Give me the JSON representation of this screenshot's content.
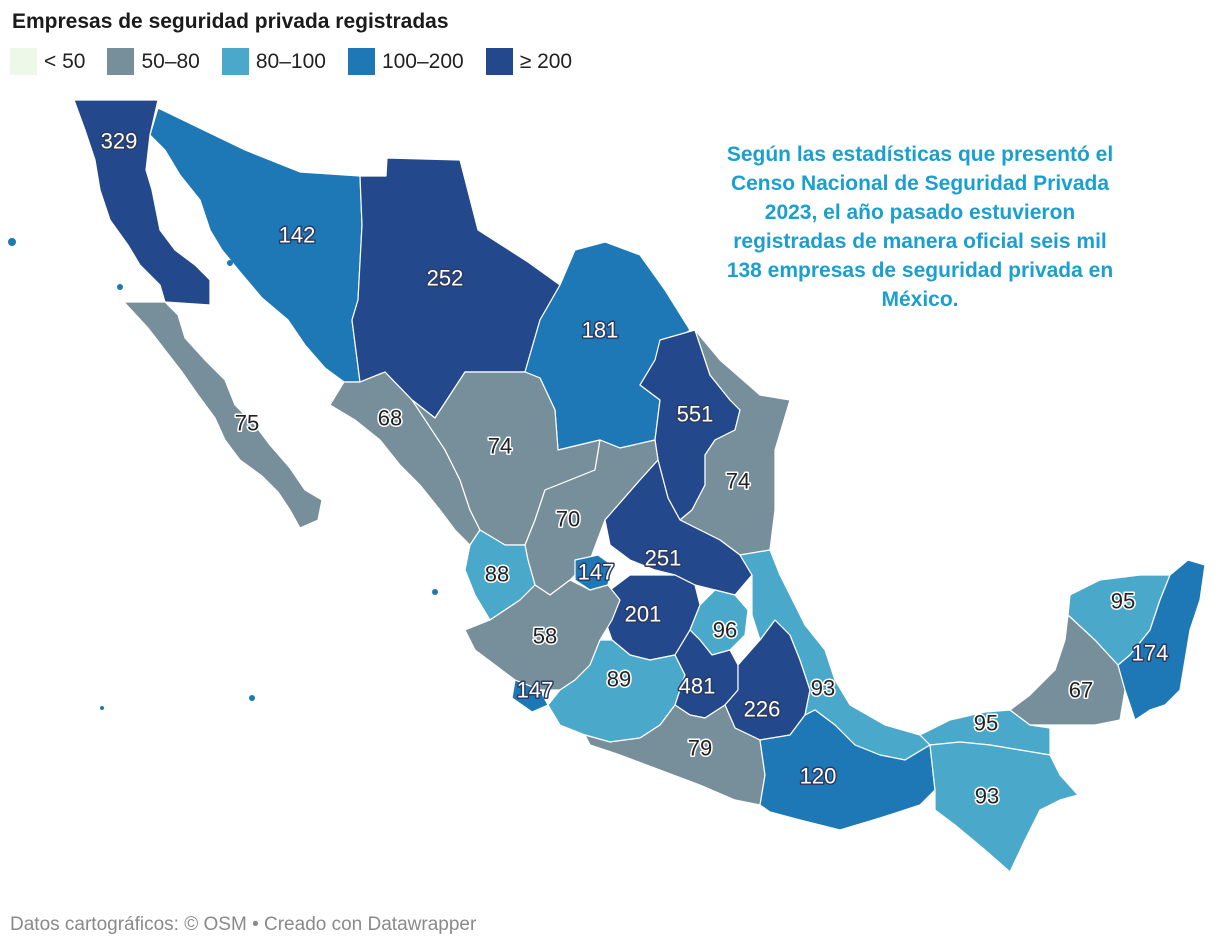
{
  "title": "Empresas de seguridad privada registradas",
  "legend": [
    {
      "label": "< 50",
      "color": "#eef8e8"
    },
    {
      "label": "50–80",
      "color": "#778f9b"
    },
    {
      "label": "80–100",
      "color": "#4aa8cb"
    },
    {
      "label": "100–200",
      "color": "#1e78b6"
    },
    {
      "label": "≥ 200",
      "color": "#23488b"
    }
  ],
  "annotation": "Según las estadísticas que presentó el Censo Nacional de Seguridad Privada 2023, el año pasado estuvieron registradas de manera oficial seis mil 138 empresas de seguridad privada en México.",
  "footer": {
    "source": "Datos cartográficos: © OSM",
    "credit": "• Creado con Datawrapper"
  },
  "states": [
    {
      "key": "baja-california",
      "value": "329"
    },
    {
      "key": "sonora",
      "value": "142"
    },
    {
      "key": "chihuahua",
      "value": "252"
    },
    {
      "key": "coahuila",
      "value": "181"
    },
    {
      "key": "nuevo-leon",
      "value": "551"
    },
    {
      "key": "baja-california-sur",
      "value": "75"
    },
    {
      "key": "sinaloa",
      "value": "68"
    },
    {
      "key": "durango",
      "value": "74"
    },
    {
      "key": "tamaulipas",
      "value": "74"
    },
    {
      "key": "zacatecas",
      "value": "70"
    },
    {
      "key": "san-luis-potosi",
      "value": "251"
    },
    {
      "key": "nayarit",
      "value": "88"
    },
    {
      "key": "aguascalientes",
      "value": "147"
    },
    {
      "key": "guanajuato",
      "value": "201"
    },
    {
      "key": "queretaro",
      "value": "96"
    },
    {
      "key": "jalisco",
      "value": "58"
    },
    {
      "key": "colima",
      "value": "147"
    },
    {
      "key": "michoacan",
      "value": "89"
    },
    {
      "key": "estado-de-mexico",
      "value": "481"
    },
    {
      "key": "puebla",
      "value": "226"
    },
    {
      "key": "veracruz",
      "value": "93"
    },
    {
      "key": "guerrero",
      "value": "79"
    },
    {
      "key": "oaxaca",
      "value": "120"
    },
    {
      "key": "tabasco",
      "value": "95"
    },
    {
      "key": "chiapas",
      "value": "93"
    },
    {
      "key": "campeche",
      "value": "67"
    },
    {
      "key": "yucatan",
      "value": "95"
    },
    {
      "key": "quintana-roo",
      "value": "174"
    }
  ]
}
